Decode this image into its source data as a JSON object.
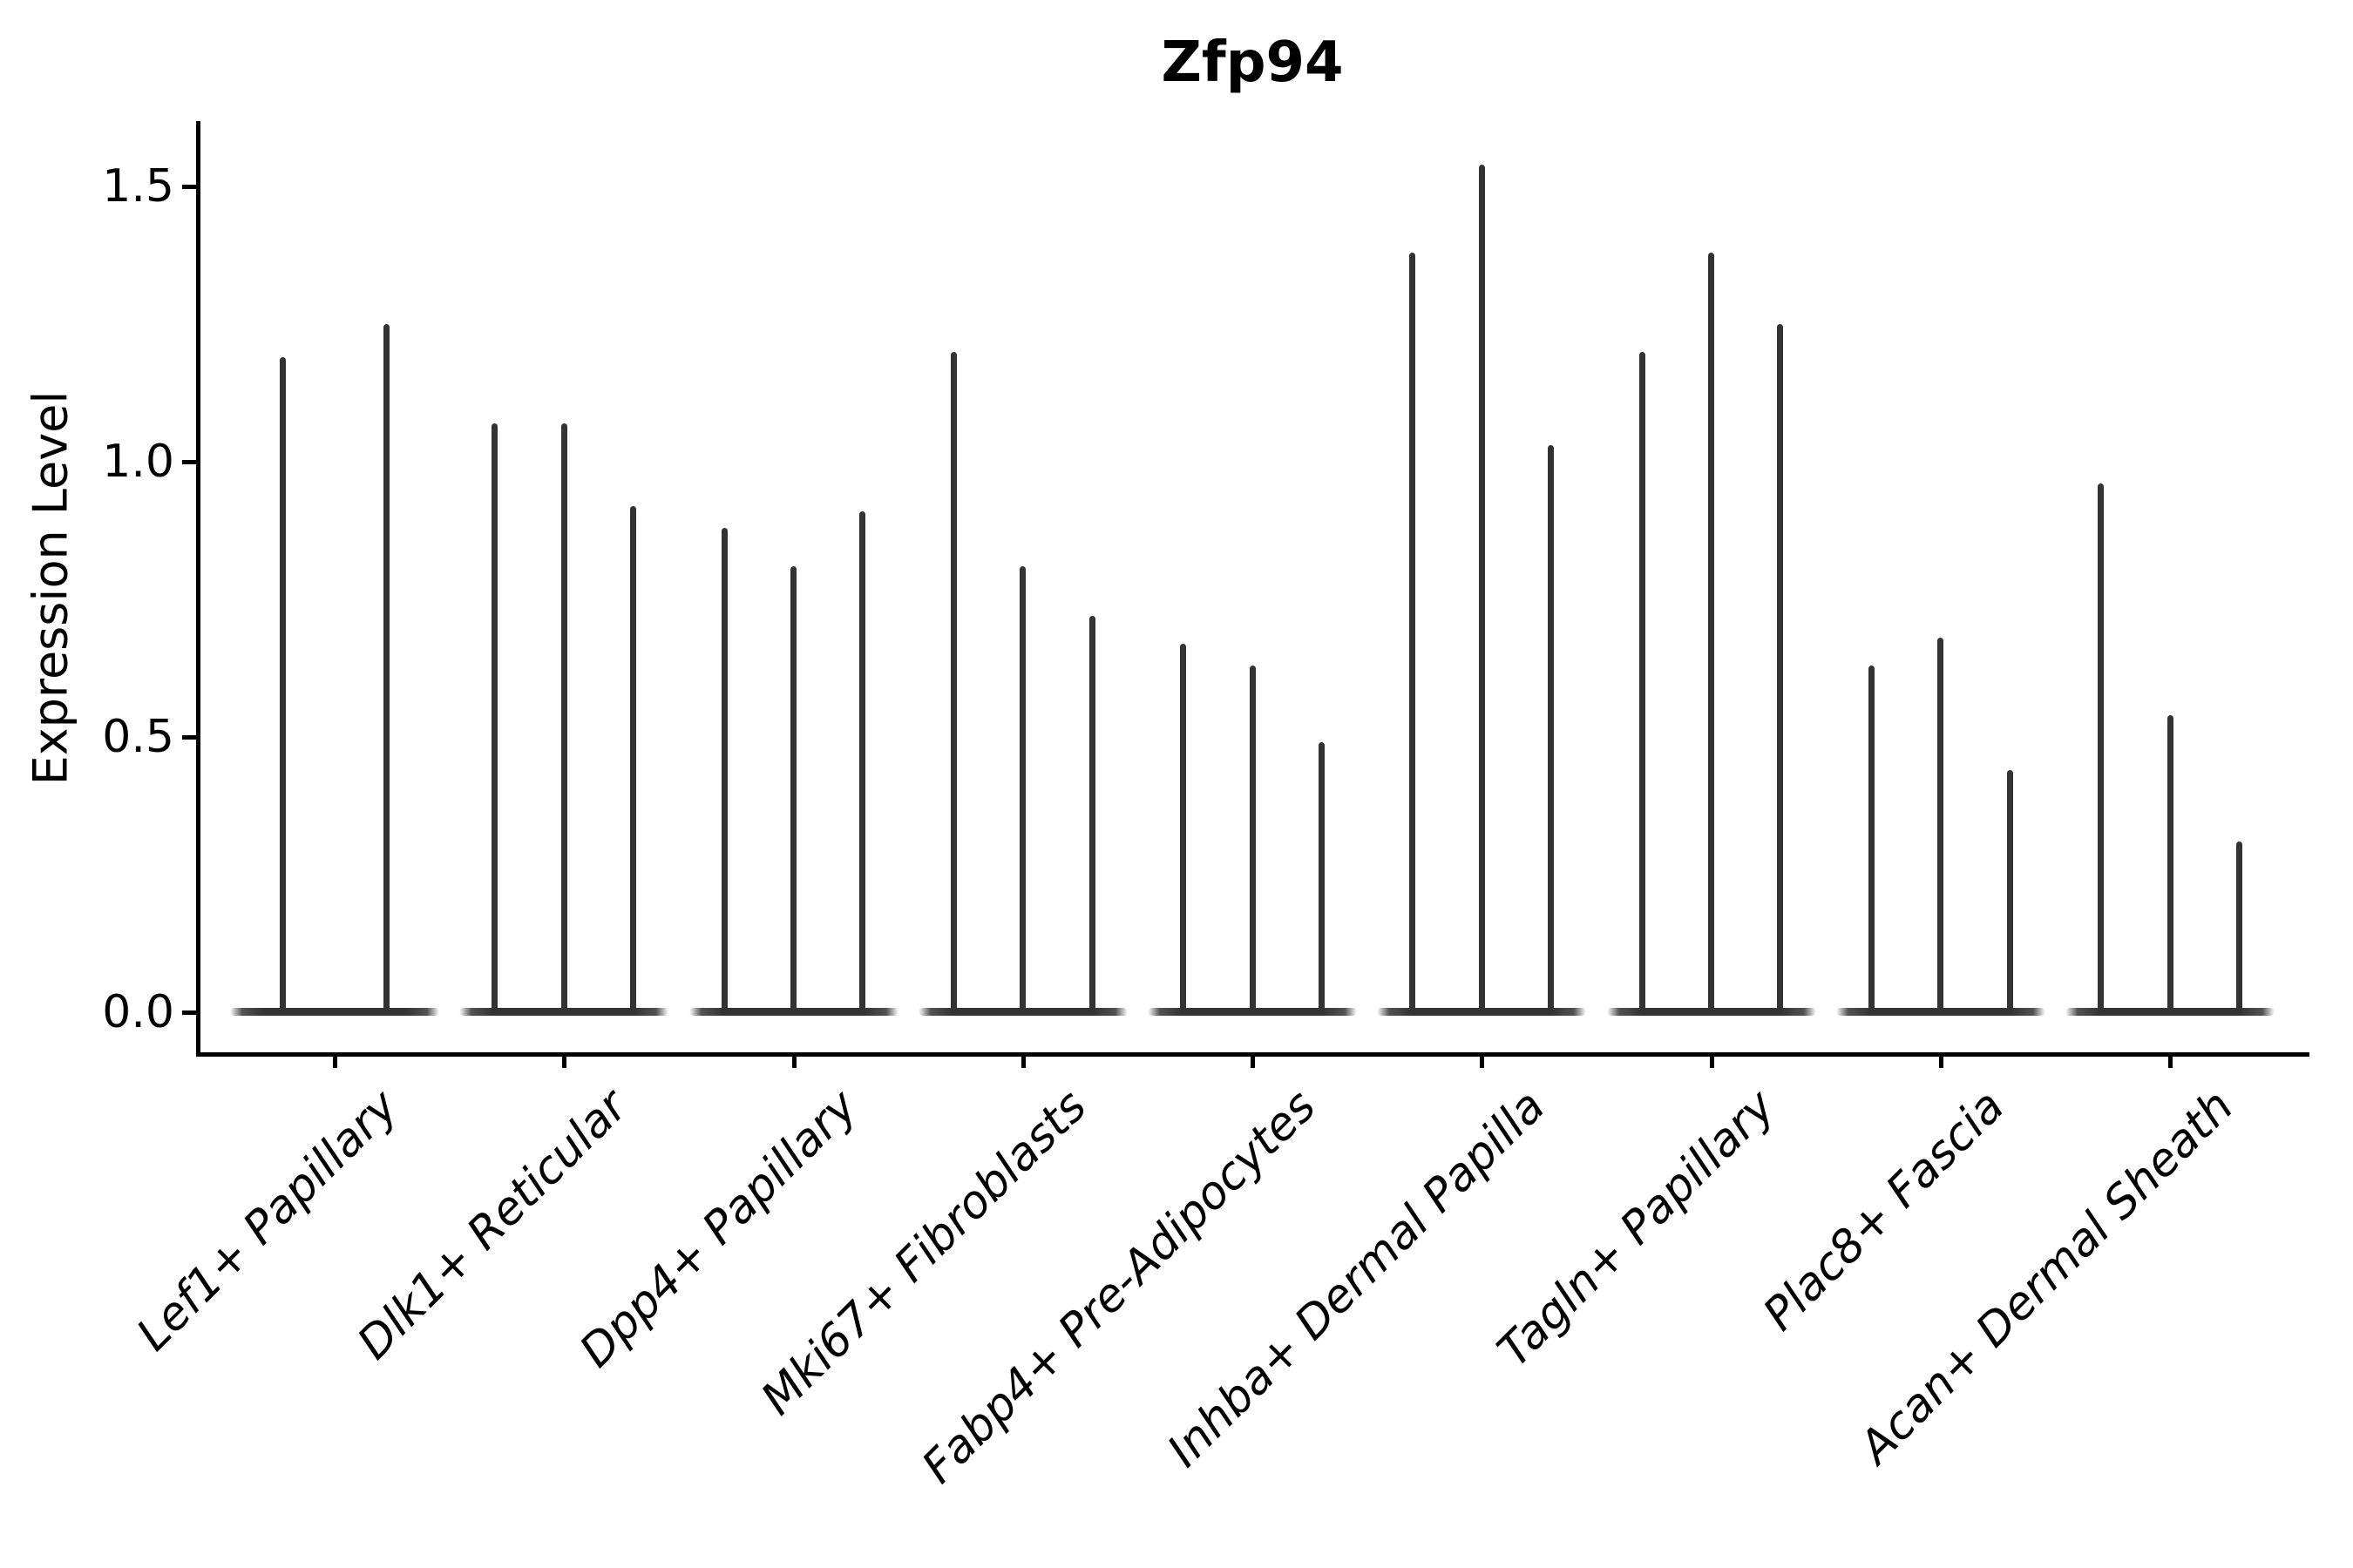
{
  "title": "Zfp94",
  "ylabel": "Expression Level",
  "chart_data": {
    "type": "violin",
    "title": "Zfp94",
    "xlabel": "",
    "ylabel": "Expression Level",
    "ylim": [
      0,
      1.62
    ],
    "yticks": [
      0.0,
      0.5,
      1.0,
      1.5
    ],
    "ytick_labels": [
      "0.0",
      "0.5",
      "1.0",
      "1.5"
    ],
    "grid": false,
    "legend": false,
    "style_note": "narrow spike-shaped violins, 2-3 per category, dark gray #333, left+bottom spines only, x labels italic rotated 45deg",
    "categories": [
      "Lef1+ Papillary",
      "Dlk1+ Reticular",
      "Dpp4+ Papillary",
      "Mki67+ Fibroblasts",
      "Fabp4+ Pre-Adipocytes",
      "Inhba+ Dermal Papilla",
      "Tagln+ Papillary",
      "Plac8+ Fascia",
      "Acan+ Dermal Sheath"
    ],
    "series": [
      {
        "category": "Lef1+ Papillary",
        "violin_max_values": [
          1.19,
          1.25
        ]
      },
      {
        "category": "Dlk1+ Reticular",
        "violin_max_values": [
          1.07,
          1.07,
          0.92
        ]
      },
      {
        "category": "Dpp4+ Papillary",
        "violin_max_values": [
          0.88,
          0.81,
          0.91
        ]
      },
      {
        "category": "Mki67+ Fibroblasts",
        "violin_max_values": [
          1.2,
          0.81,
          0.72
        ]
      },
      {
        "category": "Fabp4+ Pre-Adipocytes",
        "violin_max_values": [
          0.67,
          0.63,
          0.49
        ]
      },
      {
        "category": "Inhba+ Dermal Papilla",
        "violin_max_values": [
          1.38,
          1.54,
          1.03
        ]
      },
      {
        "category": "Tagln+ Papillary",
        "violin_max_values": [
          1.2,
          1.38,
          1.25
        ]
      },
      {
        "category": "Plac8+ Fascia",
        "violin_max_values": [
          0.63,
          0.68,
          0.44
        ]
      },
      {
        "category": "Acan+ Dermal Sheath",
        "violin_max_values": [
          0.96,
          0.54,
          0.31
        ]
      }
    ],
    "colors": {
      "violin": "#333333",
      "spine": "#000000",
      "text": "#000000",
      "background": "#ffffff"
    }
  }
}
